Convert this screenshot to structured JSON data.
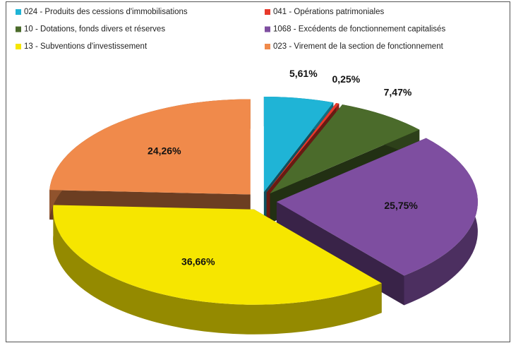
{
  "chart_data": {
    "type": "pie",
    "categories": [
      "024 - Produits des cessions d'immobilisations",
      "041 - Opérations patrimoniales",
      "10 - Dotations, fonds divers et réserves",
      "1068 - Excédents de fonctionnement capitalisés",
      "13 - Subventions d'investissement",
      "023 - Virement de la section de fonctionnement"
    ],
    "values": [
      5.61,
      0.25,
      7.47,
      25.75,
      36.66,
      24.26
    ],
    "value_labels": [
      "5,61%",
      "0,25%",
      "7,47%",
      "25,75%",
      "36,66%",
      "24,26%"
    ],
    "colors": [
      "#1fb4d6",
      "#e8392b",
      "#4b6b2b",
      "#7e4ea0",
      "#f6e600",
      "#f08a4b"
    ],
    "legend": "top"
  }
}
